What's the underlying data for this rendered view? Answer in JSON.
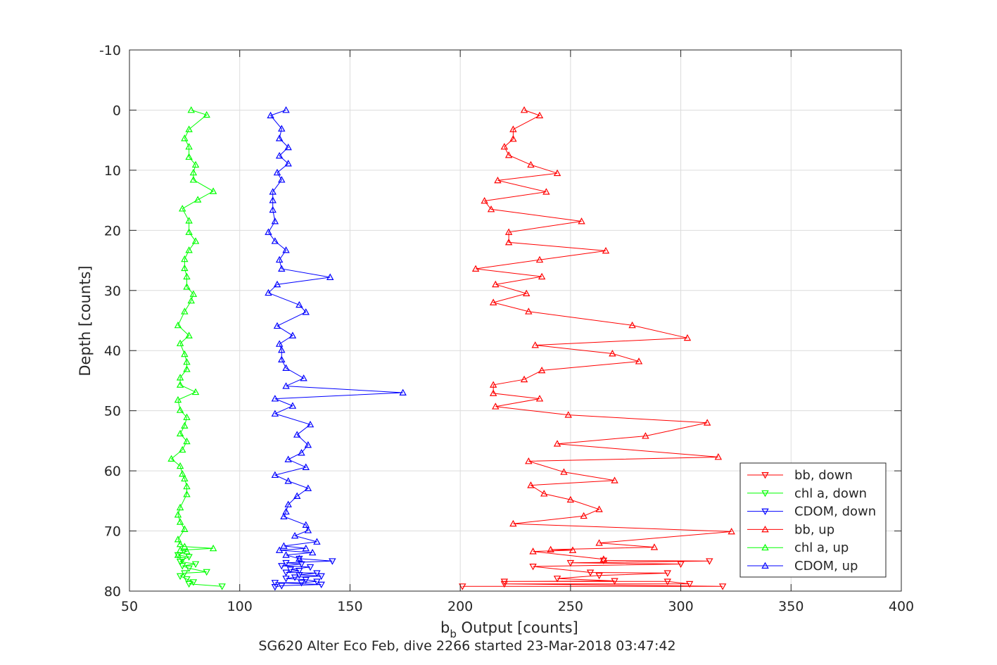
{
  "chart_data": {
    "type": "line",
    "xlabel_main": "b",
    "xlabel_sub": "b",
    "xlabel_rest": " Output [counts]",
    "ylabel": "Depth [counts]",
    "caption": "SG620 Alter Eco Feb, dive 2266 started 23-Mar-2018 03:47:42",
    "xlim": [
      50,
      400
    ],
    "ylim": [
      -10,
      80
    ],
    "y_reversed": true,
    "grid": true,
    "legend_position": "bottom-right",
    "xticks": [
      50,
      100,
      150,
      200,
      250,
      300,
      350,
      400
    ],
    "yticks": [
      -10,
      0,
      10,
      20,
      30,
      40,
      50,
      60,
      70,
      80
    ],
    "series": [
      {
        "name": "bb, down",
        "color": "#ff0000",
        "marker": "triangle-down",
        "points": [
          [
            201,
            79.2
          ],
          [
            319,
            79.2
          ],
          [
            220,
            78.8
          ],
          [
            304,
            78.8
          ],
          [
            294,
            78.4
          ],
          [
            220,
            78.4
          ],
          [
            270,
            78.3
          ],
          [
            244,
            77.9
          ],
          [
            263,
            77.4
          ],
          [
            294,
            77
          ],
          [
            259,
            76.9
          ],
          [
            233,
            75.9
          ],
          [
            300,
            75.5
          ],
          [
            250,
            75.3
          ],
          [
            313,
            75
          ],
          [
            265,
            74.9
          ]
        ]
      },
      {
        "name": "chl a, down",
        "color": "#00ff00",
        "marker": "triangle-down",
        "points": [
          [
            92,
            79.2
          ],
          [
            77,
            78.8
          ],
          [
            79,
            78.5
          ],
          [
            76,
            78
          ],
          [
            73,
            77.5
          ],
          [
            75,
            77
          ],
          [
            85,
            76.8
          ],
          [
            77,
            76.2
          ],
          [
            74,
            75.8
          ],
          [
            80,
            75.5
          ],
          [
            73,
            75.1
          ],
          [
            74,
            74.8
          ],
          [
            77,
            74.3
          ],
          [
            72,
            74
          ]
        ]
      },
      {
        "name": "CDOM, down",
        "color": "#0000ff",
        "marker": "triangle-down",
        "points": [
          [
            116,
            79.3
          ],
          [
            119,
            79.1
          ],
          [
            137,
            78.9
          ],
          [
            116,
            78.6
          ],
          [
            128,
            78.6
          ],
          [
            135,
            78.4
          ],
          [
            130,
            78.1
          ],
          [
            121,
            77.9
          ],
          [
            125,
            77.7
          ],
          [
            137,
            77.5
          ],
          [
            127,
            77.3
          ],
          [
            135,
            77
          ],
          [
            121,
            76.9
          ],
          [
            127,
            76.6
          ],
          [
            123,
            76.4
          ],
          [
            132,
            76
          ],
          [
            119,
            75.8
          ],
          [
            128,
            75.5
          ],
          [
            121,
            75.3
          ],
          [
            142,
            75
          ],
          [
            127,
            74.6
          ]
        ]
      },
      {
        "name": "bb, up",
        "color": "#ff0000",
        "marker": "triangle-up",
        "points": [
          [
            265,
            74.7
          ],
          [
            233,
            73.4
          ],
          [
            251,
            73.2
          ],
          [
            241,
            73.1
          ],
          [
            288,
            72.7
          ],
          [
            263,
            72
          ],
          [
            323,
            70.1
          ],
          [
            224,
            68.8
          ],
          [
            256,
            67.5
          ],
          [
            263,
            66.4
          ],
          [
            250,
            64.8
          ],
          [
            238,
            63.8
          ],
          [
            232,
            62.4
          ],
          [
            270,
            61.6
          ],
          [
            247,
            60.2
          ],
          [
            231,
            58.4
          ],
          [
            317,
            57.7
          ],
          [
            244,
            55.5
          ],
          [
            284,
            54.2
          ],
          [
            312,
            52
          ],
          [
            249,
            50.7
          ],
          [
            216,
            49.3
          ],
          [
            236,
            48
          ],
          [
            215,
            47.1
          ],
          [
            215,
            45.7
          ],
          [
            229,
            44.8
          ],
          [
            237,
            43.3
          ],
          [
            281,
            41.8
          ],
          [
            269,
            40.5
          ],
          [
            234,
            39.1
          ],
          [
            303,
            37.9
          ],
          [
            278,
            35.8
          ],
          [
            231,
            33.5
          ],
          [
            215,
            32
          ],
          [
            230,
            30.5
          ],
          [
            216,
            29
          ],
          [
            237,
            27.7
          ],
          [
            207,
            26.4
          ],
          [
            236,
            24.9
          ],
          [
            266,
            23.4
          ],
          [
            222,
            22
          ],
          [
            222,
            20.3
          ],
          [
            255,
            18.5
          ],
          [
            214,
            16.5
          ],
          [
            211,
            15.1
          ],
          [
            239,
            13.6
          ],
          [
            217,
            11.7
          ],
          [
            244,
            10.5
          ],
          [
            232,
            9.1
          ],
          [
            222,
            7.5
          ],
          [
            220,
            6.1
          ],
          [
            224,
            4.8
          ],
          [
            224,
            3.2
          ],
          [
            236,
            0.9
          ],
          [
            229,
            0
          ]
        ]
      },
      {
        "name": "chl a, up",
        "color": "#00ff00",
        "marker": "triangle-up",
        "points": [
          [
            72,
            74
          ],
          [
            76,
            73.4
          ],
          [
            73,
            73.2
          ],
          [
            88,
            72.9
          ],
          [
            75,
            72.6
          ],
          [
            73,
            72.2
          ],
          [
            72,
            71.4
          ],
          [
            75,
            69.7
          ],
          [
            73,
            68.5
          ],
          [
            72,
            67.3
          ],
          [
            73,
            66.1
          ],
          [
            76,
            63.9
          ],
          [
            76,
            62.6
          ],
          [
            75,
            61.3
          ],
          [
            74,
            60.5
          ],
          [
            73,
            59.2
          ],
          [
            69,
            58
          ],
          [
            74,
            56.5
          ],
          [
            76,
            55.1
          ],
          [
            73,
            53.8
          ],
          [
            75,
            52.5
          ],
          [
            76,
            51.1
          ],
          [
            73,
            49.9
          ],
          [
            72,
            48.2
          ],
          [
            80,
            46.9
          ],
          [
            73,
            45.7
          ],
          [
            73,
            44.5
          ],
          [
            76,
            43.1
          ],
          [
            76,
            41.9
          ],
          [
            75,
            40.6
          ],
          [
            73,
            38.8
          ],
          [
            77,
            37.5
          ],
          [
            72,
            35.8
          ],
          [
            75,
            33.5
          ],
          [
            78,
            31.7
          ],
          [
            79,
            30.6
          ],
          [
            76,
            29.4
          ],
          [
            76,
            27.7
          ],
          [
            75,
            26.3
          ],
          [
            75,
            24.8
          ],
          [
            77,
            23.3
          ],
          [
            80,
            21.8
          ],
          [
            77,
            20.3
          ],
          [
            77,
            18.4
          ],
          [
            74,
            16.4
          ],
          [
            81,
            14.9
          ],
          [
            88,
            13.5
          ],
          [
            79,
            11.6
          ],
          [
            79,
            10.4
          ],
          [
            80,
            9.1
          ],
          [
            77,
            7.8
          ],
          [
            77,
            6.1
          ],
          [
            75,
            4.7
          ],
          [
            77,
            3.2
          ],
          [
            85,
            0.8
          ],
          [
            78,
            0
          ]
        ]
      },
      {
        "name": "CDOM, up",
        "color": "#0000ff",
        "marker": "triangle-up",
        "points": [
          [
            127,
            74.6
          ],
          [
            121,
            74
          ],
          [
            133,
            73.6
          ],
          [
            118,
            73.2
          ],
          [
            130,
            72.9
          ],
          [
            120,
            72.5
          ],
          [
            135,
            71.8
          ],
          [
            125,
            70.8
          ],
          [
            131,
            69.9
          ],
          [
            130,
            69
          ],
          [
            120,
            67.6
          ],
          [
            121,
            66.8
          ],
          [
            122,
            65.6
          ],
          [
            126,
            64.2
          ],
          [
            131,
            62.9
          ],
          [
            122,
            61.7
          ],
          [
            116,
            60.7
          ],
          [
            130,
            59.4
          ],
          [
            122,
            58.1
          ],
          [
            128,
            57
          ],
          [
            131,
            55.7
          ],
          [
            126,
            54
          ],
          [
            132,
            52.3
          ],
          [
            116,
            50.5
          ],
          [
            124,
            49.2
          ],
          [
            116,
            48
          ],
          [
            174,
            47
          ],
          [
            121,
            45.9
          ],
          [
            129,
            44.6
          ],
          [
            121,
            42.9
          ],
          [
            119,
            41.5
          ],
          [
            119,
            39.9
          ],
          [
            118,
            38.9
          ],
          [
            124,
            37.5
          ],
          [
            117,
            35.9
          ],
          [
            130,
            33.6
          ],
          [
            127,
            32.4
          ],
          [
            113,
            30.4
          ],
          [
            117,
            29
          ],
          [
            141,
            27.8
          ],
          [
            119,
            26.4
          ],
          [
            118,
            24.9
          ],
          [
            121,
            23.3
          ],
          [
            116,
            21.8
          ],
          [
            113,
            20.3
          ],
          [
            116,
            18.5
          ],
          [
            115,
            16.6
          ],
          [
            115,
            15
          ],
          [
            115,
            13.6
          ],
          [
            119,
            11.6
          ],
          [
            117,
            10.4
          ],
          [
            122,
            8.9
          ],
          [
            118,
            7.6
          ],
          [
            122,
            6.2
          ],
          [
            118,
            4.7
          ],
          [
            119,
            3.1
          ],
          [
            114,
            0.9
          ],
          [
            121,
            0
          ]
        ]
      }
    ]
  }
}
